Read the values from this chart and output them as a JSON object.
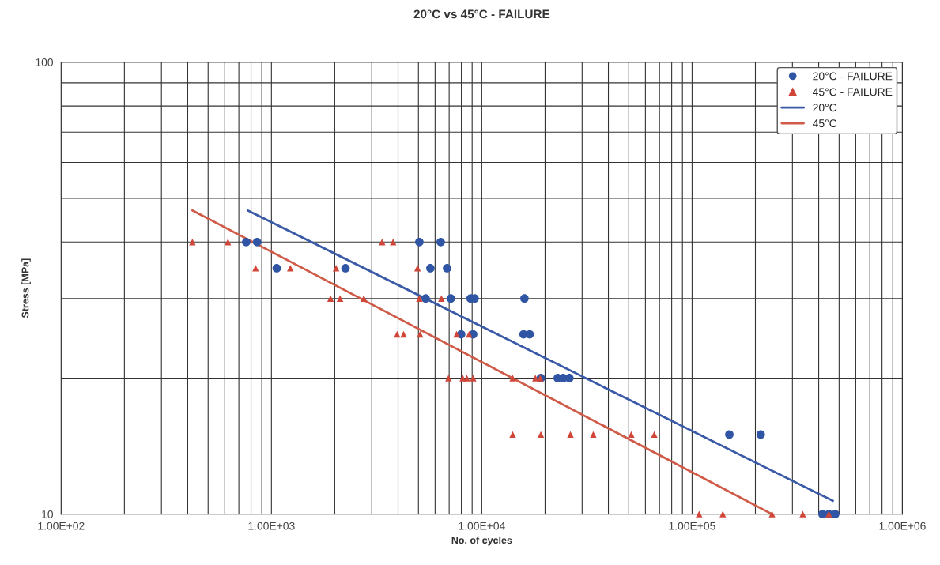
{
  "chart_data": {
    "type": "scatter",
    "title": "20°C vs 45°C - FAILURE",
    "xlabel": "No. of cycles",
    "ylabel": "Stress [MPa]",
    "log": "xy",
    "grid": true,
    "legend": "top right",
    "xlim": [
      100,
      1000000
    ],
    "ylim": [
      10,
      100
    ],
    "xticks": [
      {
        "value": 100,
        "label": "1.00E+02"
      },
      {
        "value": 1000,
        "label": "1.00E+03"
      },
      {
        "value": 10000,
        "label": "1.00E+04"
      },
      {
        "value": 100000,
        "label": "1.00E+05"
      },
      {
        "value": 1000000,
        "label": "1.00E+06"
      }
    ],
    "yticks": [
      10,
      100
    ],
    "series": [
      {
        "name": "20°C - FAILURE",
        "marker": "circle",
        "color": "#2f55a4",
        "x": [
          759,
          855,
          5050,
          6380,
          1060,
          2250,
          5700,
          6840,
          5410,
          7130,
          8850,
          9250,
          15960,
          7980,
          9100,
          15800,
          16900,
          19100,
          22960,
          24400,
          26100,
          150400,
          212000,
          417000,
          447000,
          479000
        ],
        "values": [
          40,
          40,
          40,
          40,
          35,
          35,
          35,
          35,
          30,
          30,
          30,
          30,
          30,
          25,
          25,
          25,
          25,
          20,
          20,
          20,
          20,
          15,
          15,
          10,
          10,
          10
        ]
      },
      {
        "name": "45°C - FAILURE",
        "marker": "triangle",
        "color": "#d0473a",
        "x": [
          421,
          621,
          3360,
          3790,
          841,
          1230,
          2030,
          4950,
          1910,
          2120,
          2750,
          5050,
          6430,
          3960,
          4250,
          5090,
          7590,
          8710,
          6950,
          8120,
          8490,
          9100,
          14030,
          18000,
          18970,
          14030,
          19100,
          26400,
          33900,
          51400,
          66100,
          108000,
          140000,
          240000,
          336000,
          447000
        ],
        "values": [
          40,
          40,
          40,
          40,
          35,
          35,
          35,
          35,
          30,
          30,
          30,
          30,
          30,
          25,
          25,
          25,
          25,
          25,
          20,
          20,
          20,
          20,
          20,
          20,
          20,
          15,
          15,
          15,
          15,
          15,
          15,
          10,
          10,
          10,
          10,
          10
        ]
      },
      {
        "name": "20°C",
        "type": "line",
        "marker": "none",
        "line_style": "solid",
        "color": "#3a5aa8",
        "x": [
          771,
          467000
        ],
        "values": [
          47.0,
          10.7
        ]
      },
      {
        "name": "45°C",
        "type": "line",
        "marker": "none",
        "line_style": "solid",
        "color": "#d05a48",
        "x": [
          421,
          240000
        ],
        "values": [
          47.0,
          10.0
        ]
      }
    ]
  }
}
